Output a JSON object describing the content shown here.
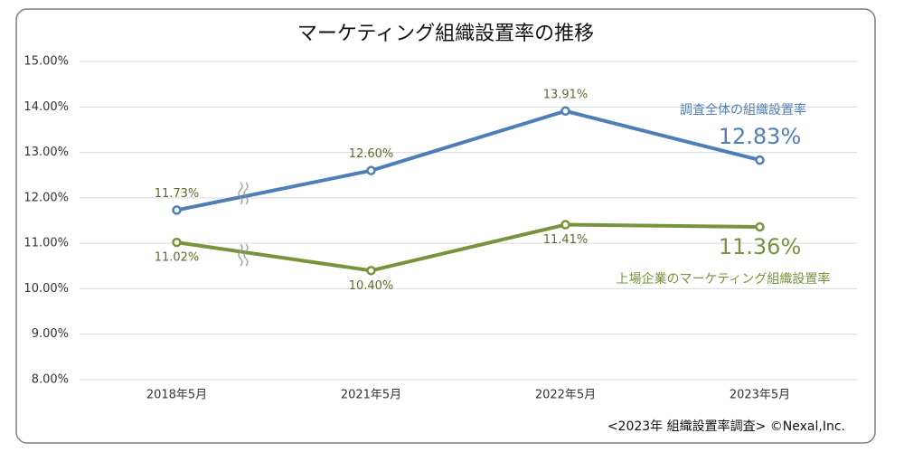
{
  "chart_data": {
    "type": "line",
    "title": "マーケティング組織設置率の推移",
    "categories": [
      "2018年5月",
      "2021年5月",
      "2022年5月",
      "2023年5月"
    ],
    "series": [
      {
        "name": "調査全体の組織設置率",
        "color": "#4f7db5",
        "values": [
          11.73,
          12.6,
          13.91,
          12.83
        ],
        "value_labels": [
          "11.73%",
          "12.60%",
          "13.91%",
          "12.83%"
        ]
      },
      {
        "name": "上場企業のマーケティング組織設置率",
        "color": "#77933c",
        "values": [
          11.02,
          10.4,
          11.41,
          11.36
        ],
        "value_labels": [
          "11.02%",
          "10.40%",
          "11.41%",
          "11.36%"
        ]
      }
    ],
    "ylim": [
      8,
      15
    ],
    "yticks": [
      {
        "value": 8,
        "label": "8.00%"
      },
      {
        "value": 9,
        "label": "9.00%"
      },
      {
        "value": 10,
        "label": "10.00%"
      },
      {
        "value": 11,
        "label": "11.00%"
      },
      {
        "value": 12,
        "label": "12.00%"
      },
      {
        "value": 13,
        "label": "13.00%"
      },
      {
        "value": 14,
        "label": "14.00%"
      },
      {
        "value": 15,
        "label": "15.00%"
      }
    ],
    "grid": true,
    "source": "<2023年 組織設置率調査> ©Nexal,Inc."
  }
}
